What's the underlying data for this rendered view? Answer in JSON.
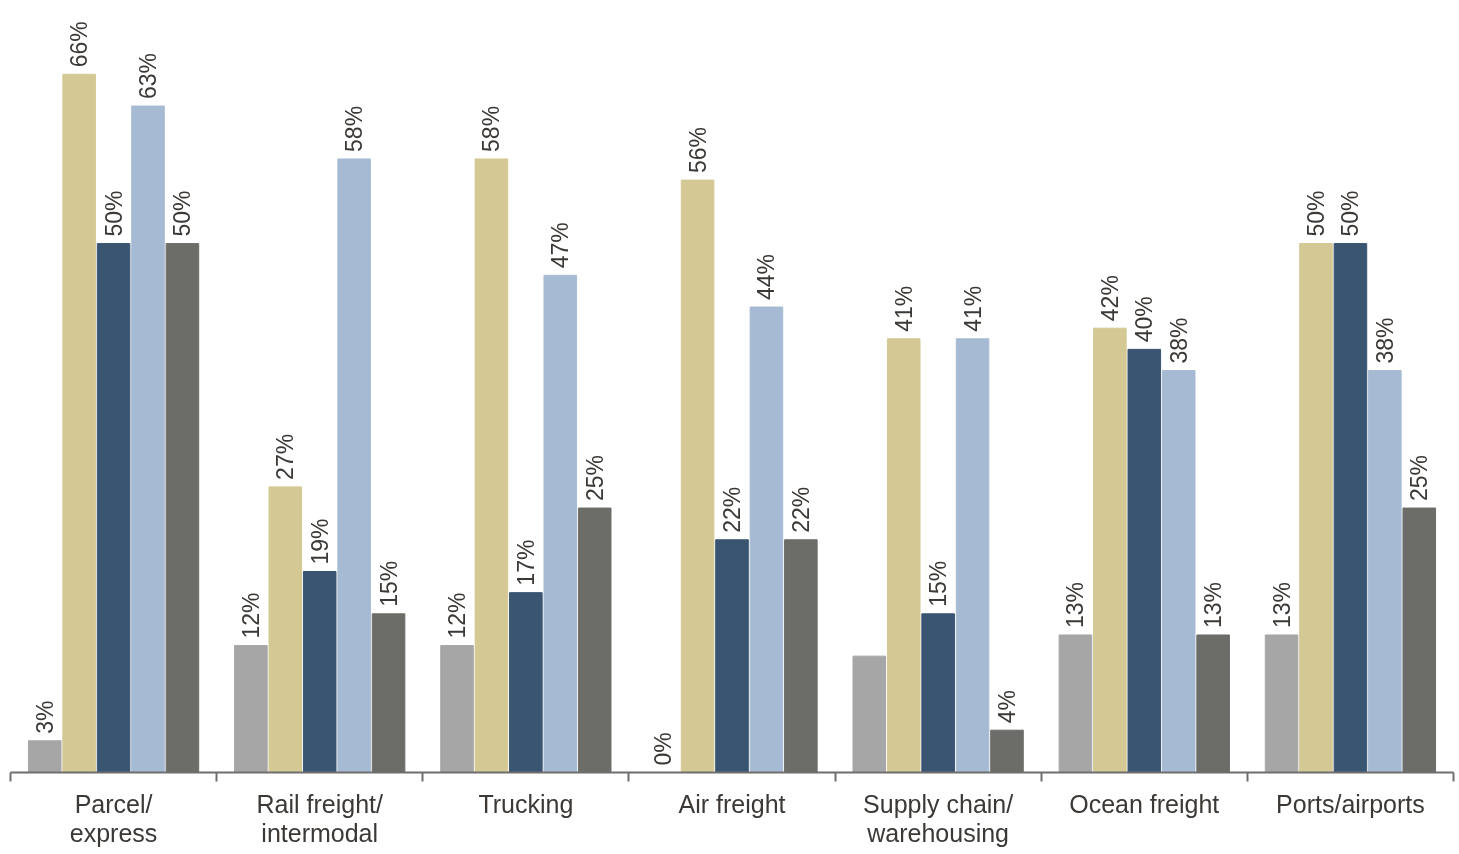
{
  "chart_data": {
    "type": "bar",
    "categories": [
      "Parcel/\nexpress",
      "Rail freight/\nintermodal",
      "Trucking",
      "Air freight",
      "Supply chain/\nwarehousing",
      "Ocean freight",
      "Ports/airports"
    ],
    "series": [
      {
        "color": "#a6a6a6",
        "values": [
          3,
          12,
          12,
          0,
          11,
          13,
          13
        ],
        "value_labels": [
          "3%",
          "12%",
          "12%",
          "0%",
          null,
          "13%",
          "13%"
        ]
      },
      {
        "color": "#d4c894",
        "values": [
          66,
          27,
          58,
          56,
          41,
          42,
          50
        ],
        "value_labels": [
          "66%",
          "27%",
          "58%",
          "56%",
          "41%",
          "42%",
          "50%"
        ]
      },
      {
        "color": "#3a5572",
        "values": [
          50,
          19,
          17,
          22,
          15,
          40,
          50
        ],
        "value_labels": [
          "50%",
          "19%",
          "17%",
          "22%",
          "15%",
          "40%",
          "50%"
        ]
      },
      {
        "color": "#a6bbd3",
        "values": [
          63,
          58,
          47,
          44,
          41,
          38,
          38
        ],
        "value_labels": [
          "63%",
          "58%",
          "47%",
          "44%",
          "41%",
          "38%",
          "38%"
        ]
      },
      {
        "color": "#6c6d68",
        "values": [
          50,
          15,
          25,
          22,
          4,
          13,
          25
        ],
        "value_labels": [
          "50%",
          "15%",
          "25%",
          "22%",
          "4%",
          "13%",
          "25%"
        ]
      }
    ],
    "tick_labels": "x",
    "grid": false
  }
}
